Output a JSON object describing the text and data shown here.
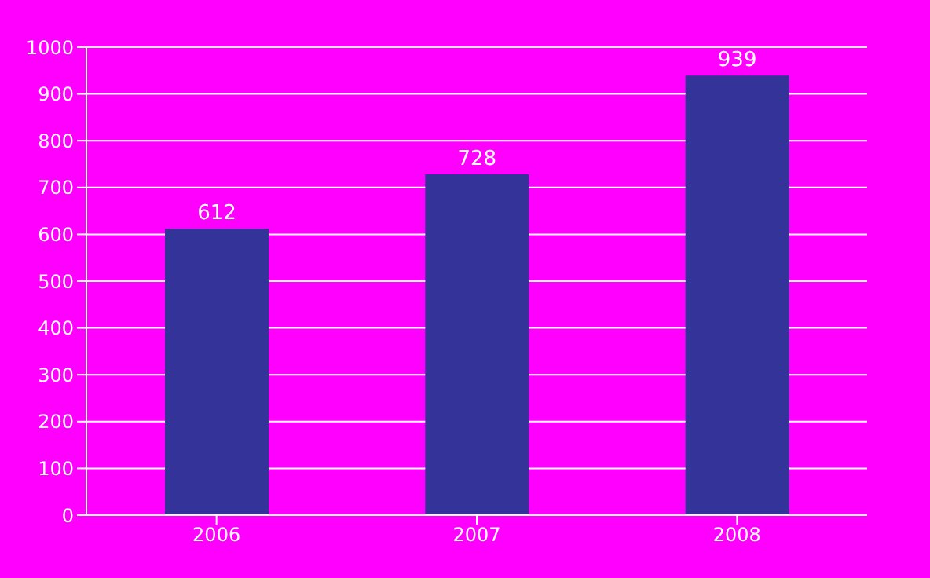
{
  "chart_data": {
    "type": "bar",
    "categories": [
      "2006",
      "2007",
      "2008"
    ],
    "values": [
      612,
      728,
      939
    ],
    "color": "#333399",
    "ylim": [
      0,
      1000
    ],
    "yticks": [
      0,
      100,
      200,
      300,
      400,
      500,
      600,
      700,
      800,
      900,
      1000
    ],
    "grid": "y",
    "data_labels": true
  }
}
